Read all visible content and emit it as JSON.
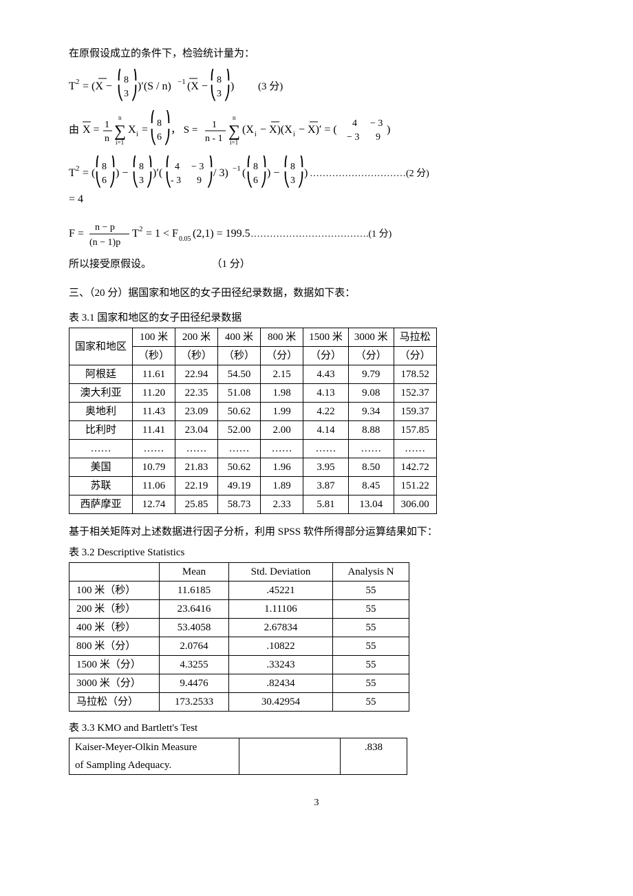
{
  "text": {
    "p1": "在原假设成立的条件下，检验统计量为：",
    "p2": "所以接受原假设。",
    "p2_score": "（1 分）",
    "section3": "三、（20 分）据国家和地区的女子田径纪录数据，数据如下表：",
    "caption31": "表 3.1 国家和地区的女子田径纪录数据",
    "p3": "基于相关矩阵对上述数据进行因子分析，利用 SPSS 软件所得部分运算结果如下：",
    "caption32": "表 3.2   Descriptive Statistics",
    "caption33": "表 3.3  KMO and Bartlett's Test",
    "page_num": "3"
  },
  "formulas": {
    "t2_def": "T² = (X̄ − (8;3))′(S/n)⁻¹(X̄ − (8;3))     (3 分)",
    "xbar_s": "由 X̄ = (1/n)∑Xᵢ = (8;6)，  S = (1/(n-1))∑(Xᵢ − X̄)(Xᵢ − X̄)′ = (4 −3; −3 9)",
    "t2_calc1": "T² = ((8;6) − (8;3))′((4 −3; −3 9)/3)⁻¹((8;6) − (8;3)) …………………………(2 分)",
    "t2_calc2": "= 4",
    "f_calc": "F = ((n−p)/((n−1)p)) T² = 1 < F₀.₀₅(2,1) = 199.5 ……………………………….(1 分)"
  },
  "table31": {
    "headers_row1": [
      "国家和地区",
      "100 米",
      "200 米",
      "400 米",
      "800 米",
      "1500 米",
      "3000 米",
      "马拉松"
    ],
    "headers_row2": [
      "",
      "（秒）",
      "（秒）",
      "（秒）",
      "（分）",
      "（分）",
      "（分）",
      "（分）"
    ],
    "rows": [
      [
        "阿根廷",
        "11.61",
        "22.94",
        "54.50",
        "2.15",
        "4.43",
        "9.79",
        "178.52"
      ],
      [
        "澳大利亚",
        "11.20",
        "22.35",
        "51.08",
        "1.98",
        "4.13",
        "9.08",
        "152.37"
      ],
      [
        "奥地利",
        "11.43",
        "23.09",
        "50.62",
        "1.99",
        "4.22",
        "9.34",
        "159.37"
      ],
      [
        "比利时",
        "11.41",
        "23.04",
        "52.00",
        "2.00",
        "4.14",
        "8.88",
        "157.85"
      ],
      [
        "……",
        "……",
        "……",
        "……",
        "……",
        "……",
        "……",
        "……"
      ],
      [
        "美国",
        "10.79",
        "21.83",
        "50.62",
        "1.96",
        "3.95",
        "8.50",
        "142.72"
      ],
      [
        "苏联",
        "11.06",
        "22.19",
        "49.19",
        "1.89",
        "3.87",
        "8.45",
        "151.22"
      ],
      [
        "西萨摩亚",
        "12.74",
        "25.85",
        "58.73",
        "2.33",
        "5.81",
        "13.04",
        "306.00"
      ]
    ]
  },
  "table32": {
    "headers": [
      "",
      "Mean",
      "Std. Deviation",
      "Analysis N"
    ],
    "rows": [
      [
        "100 米（秒）",
        "11.6185",
        ".45221",
        "55"
      ],
      [
        "200 米（秒）",
        "23.6416",
        "1.11106",
        "55"
      ],
      [
        "400 米（秒）",
        "53.4058",
        "2.67834",
        "55"
      ],
      [
        "800 米（分）",
        "2.0764",
        ".10822",
        "55"
      ],
      [
        "1500 米（分）",
        "4.3255",
        ".33243",
        "55"
      ],
      [
        "3000 米（分）",
        "9.4476",
        ".82434",
        "55"
      ],
      [
        "马拉松（分）",
        "173.2533",
        "30.42954",
        "55"
      ]
    ]
  },
  "table33": {
    "rows": [
      [
        "Kaiser-Meyer-Olkin Measure",
        "",
        ".838"
      ],
      [
        " of Sampling Adequacy.",
        "",
        ""
      ]
    ]
  }
}
